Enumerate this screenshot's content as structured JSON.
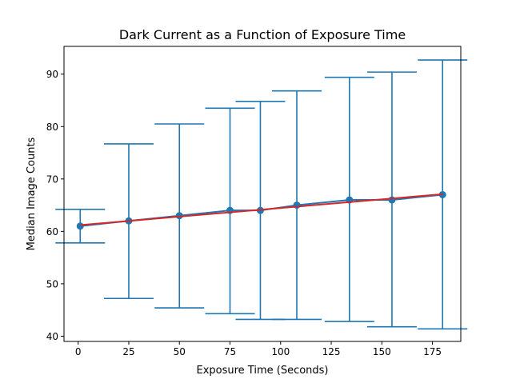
{
  "chart_data": {
    "type": "scatter",
    "title": "Dark Current as a Function of Exposure Time",
    "xlabel": "Exposure Time (Seconds)",
    "ylabel": "Median Image Counts",
    "xlim": [
      -7,
      189
    ],
    "ylim": [
      39,
      95.3
    ],
    "xticks": [
      0,
      25,
      50,
      75,
      100,
      125,
      150,
      175
    ],
    "yticks": [
      40,
      50,
      60,
      70,
      80,
      90
    ],
    "grid": false,
    "series": [
      {
        "type": "errorbar",
        "color": "#1f77b4",
        "x": [
          1,
          25,
          50,
          75,
          90,
          108,
          134,
          155,
          180
        ],
        "y": [
          61,
          62,
          63,
          64,
          64,
          65,
          66,
          66,
          67
        ],
        "ymin": [
          57.8,
          47.2,
          45.4,
          44.3,
          43.2,
          43.2,
          42.8,
          41.8,
          41.4
        ],
        "ymax": [
          64.2,
          76.7,
          80.5,
          83.5,
          84.8,
          86.8,
          89.4,
          90.4,
          92.7
        ]
      },
      {
        "type": "line",
        "color": "#d62728",
        "x": [
          1,
          180
        ],
        "y": [
          61.2,
          67.1
        ]
      }
    ]
  }
}
